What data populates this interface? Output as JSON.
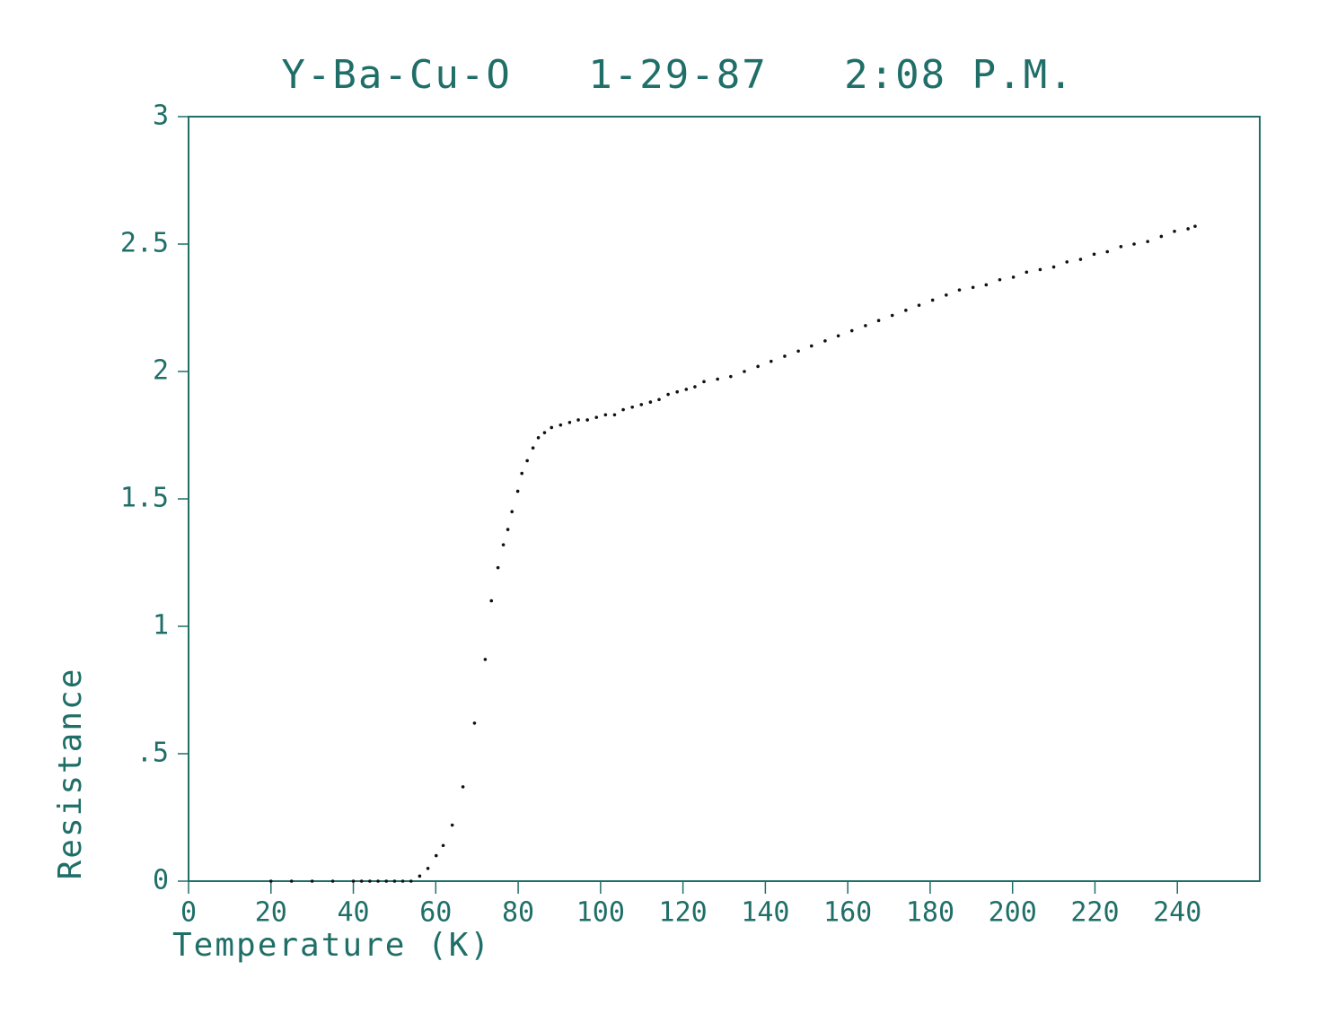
{
  "chart_data": {
    "type": "scatter",
    "title": "Y-Ba-Cu-O   1-29-87   2:08 P.M.",
    "x_label": "Temperature (K)",
    "y_label": "Resistance",
    "color": "#111111",
    "axis_color": "#1f6f68",
    "xlim": [
      0,
      260
    ],
    "ylim": [
      0,
      3
    ],
    "xticks": [
      0,
      20,
      40,
      60,
      80,
      100,
      120,
      140,
      160,
      180,
      200,
      220,
      240
    ],
    "yticks": [
      0,
      {
        "value": 0.5,
        "label": ".5"
      },
      1,
      1.5,
      2,
      2.5,
      3
    ],
    "x": [
      20,
      25,
      30,
      35,
      40,
      42,
      44,
      46,
      48,
      50,
      52,
      54,
      56.1,
      58.1,
      60.1,
      61.8,
      64,
      66.6,
      69.4,
      72,
      73.5,
      75.1,
      76.4,
      77.5,
      78.5,
      79.9,
      80.9,
      82.2,
      83.6,
      84.9,
      86.4,
      88.1,
      90.3,
      92.5,
      94.6,
      96.8,
      99,
      101.2,
      103.4,
      105.5,
      107.7,
      109.9,
      112.1,
      114.2,
      116.4,
      118.6,
      120.8,
      122.9,
      125.1,
      128.4,
      131.6,
      134.9,
      138.2,
      141.4,
      144.7,
      148,
      151.2,
      154.5,
      157.7,
      161,
      164.3,
      167.5,
      170.8,
      174.1,
      177.3,
      180.6,
      183.9,
      187.1,
      190.4,
      193.6,
      196.9,
      200.2,
      203.4,
      206.7,
      210,
      213.2,
      216.5,
      219.8,
      223,
      226.3,
      229.5,
      232.8,
      236.1,
      239.3,
      242.6,
      244.3
    ],
    "values": [
      0,
      0,
      0,
      0,
      0,
      0,
      0,
      0,
      0,
      0,
      0,
      0,
      0.02,
      0.05,
      0.1,
      0.14,
      0.22,
      0.37,
      0.62,
      0.87,
      1.1,
      1.23,
      1.32,
      1.38,
      1.45,
      1.53,
      1.6,
      1.65,
      1.7,
      1.74,
      1.76,
      1.78,
      1.79,
      1.8,
      1.81,
      1.81,
      1.82,
      1.83,
      1.83,
      1.85,
      1.86,
      1.87,
      1.88,
      1.89,
      1.91,
      1.92,
      1.93,
      1.94,
      1.96,
      1.97,
      1.98,
      2,
      2.02,
      2.04,
      2.06,
      2.08,
      2.1,
      2.12,
      2.14,
      2.16,
      2.18,
      2.2,
      2.22,
      2.24,
      2.26,
      2.28,
      2.3,
      2.32,
      2.33,
      2.34,
      2.36,
      2.37,
      2.39,
      2.4,
      2.41,
      2.43,
      2.44,
      2.46,
      2.47,
      2.49,
      2.5,
      2.51,
      2.53,
      2.55,
      2.56,
      2.57
    ]
  }
}
